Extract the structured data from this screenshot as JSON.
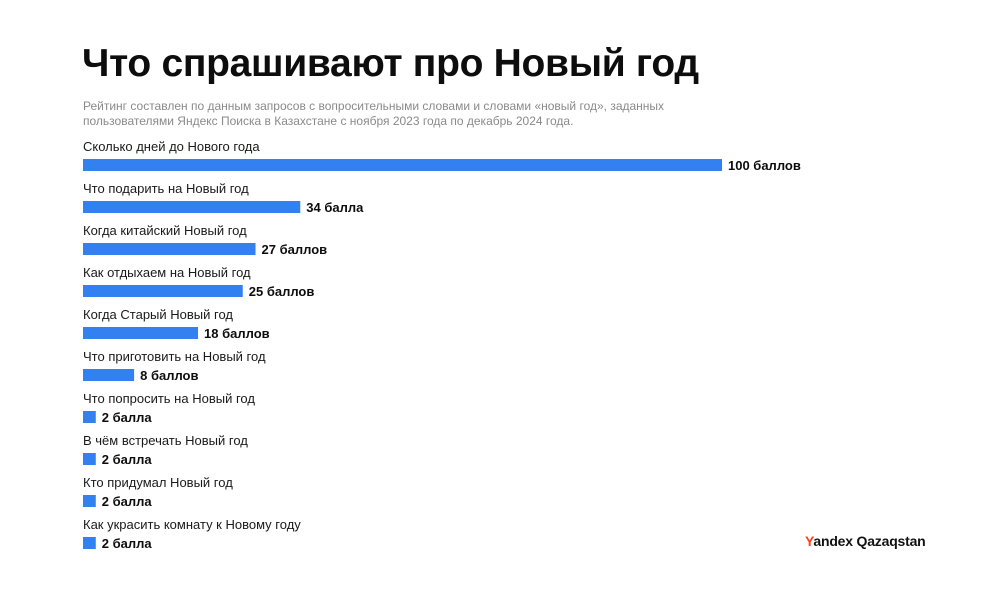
{
  "header": {
    "title": "Что спрашивают про Новый год",
    "subtitle": "Рейтинг составлен по данным запросов с вопросительными словами и словами «новый год», заданных пользователями Яндекс Поиска в Казахстане с ноября 2023 года по декабрь 2024 года."
  },
  "brand": {
    "logo_letter": "Y",
    "logo_rest": "andex Qazaqstan",
    "logo_color": "#fc3f1d"
  },
  "chart_data": {
    "type": "bar",
    "orientation": "horizontal",
    "bar_color": "#3380f0",
    "xlim": [
      0,
      100
    ],
    "grid": false,
    "legend": "none",
    "categories": [
      "Сколько дней до Нового года",
      "Что подарить на Новый год",
      "Когда китайский Новый год",
      "Как отдыхаем на Новый год",
      "Когда Старый Новый год",
      "Что приготовить на Новый год",
      "Что попросить на Новый год",
      "В чём встречать Новый год",
      "Кто придумал Новый год",
      "Как украсить комнату к Новому году"
    ],
    "values": [
      100,
      34,
      27,
      25,
      18,
      8,
      2,
      2,
      2,
      2
    ],
    "value_labels": [
      "100 баллов",
      "34 балла",
      "27 баллов",
      "25 баллов",
      "18 баллов",
      "8 баллов",
      "2 балла",
      "2 балла",
      "2 балла",
      "2 балла"
    ]
  }
}
